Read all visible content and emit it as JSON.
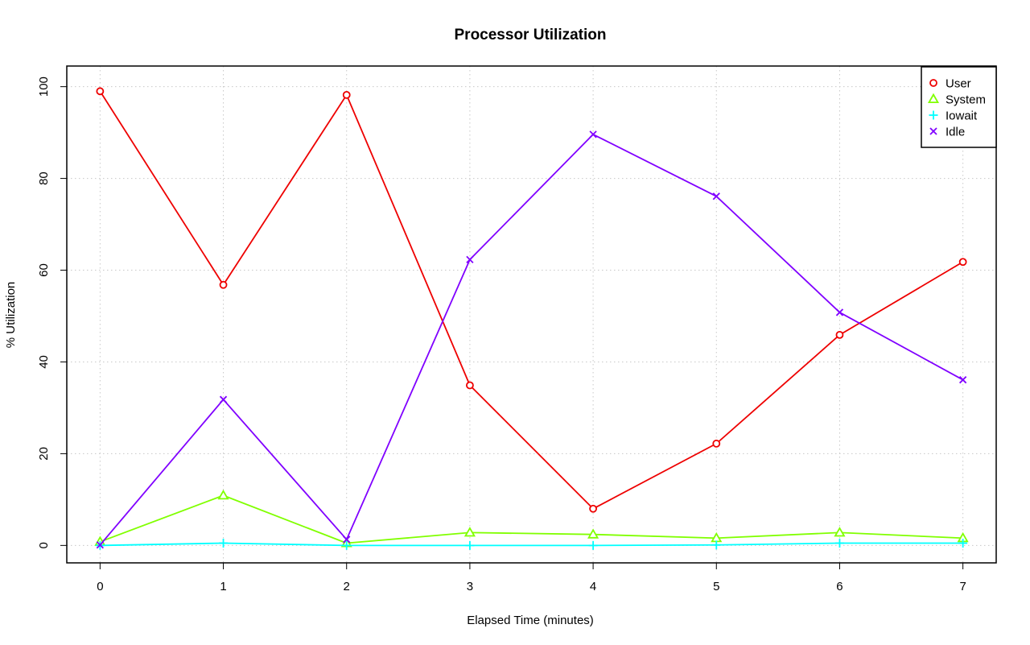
{
  "chart_data": {
    "type": "line",
    "title": "Processor Utilization",
    "xlabel": "Elapsed Time (minutes)",
    "ylabel": "% Utilization",
    "x": [
      0,
      1,
      2,
      3,
      4,
      5,
      6,
      7
    ],
    "x_ticks": [
      "0",
      "1",
      "2",
      "3",
      "4",
      "5",
      "6",
      "7"
    ],
    "y_ticks": [
      "0",
      "20",
      "40",
      "60",
      "80",
      "100"
    ],
    "xlim": [
      -0.27,
      7.27
    ],
    "ylim": [
      -3.8,
      104.5
    ],
    "grid": true,
    "legend_position": "top-right",
    "series": [
      {
        "name": "User",
        "color": "#ee0000",
        "marker": "circle",
        "values": [
          99.0,
          56.8,
          98.2,
          34.9,
          8.0,
          22.2,
          45.9,
          61.8
        ]
      },
      {
        "name": "System",
        "color": "#80ff00",
        "marker": "triangle",
        "values": [
          0.8,
          10.9,
          0.5,
          2.8,
          2.4,
          1.6,
          2.8,
          1.6
        ]
      },
      {
        "name": "Iowait",
        "color": "#00ffff",
        "marker": "plus",
        "values": [
          0.0,
          0.5,
          0.0,
          0.0,
          0.0,
          0.1,
          0.5,
          0.5
        ]
      },
      {
        "name": "Idle",
        "color": "#8000ff",
        "marker": "x",
        "values": [
          0.1,
          31.8,
          1.3,
          62.3,
          89.6,
          76.1,
          50.8,
          36.1
        ]
      }
    ]
  }
}
